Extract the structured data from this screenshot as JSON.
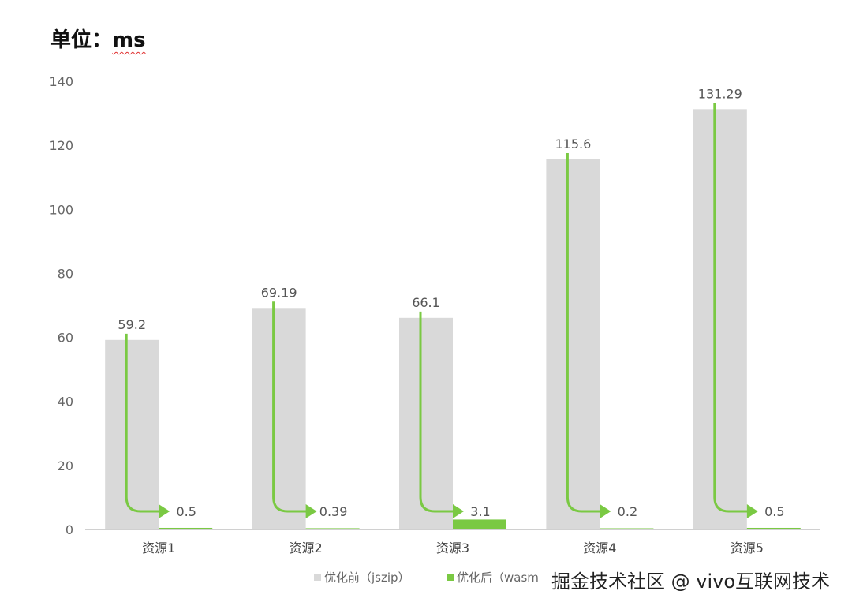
{
  "title": {
    "prefix": "单位：",
    "unit": "ms"
  },
  "chart_data": {
    "type": "bar",
    "categories": [
      "资源1",
      "资源2",
      "资源3",
      "资源4",
      "资源5"
    ],
    "series": [
      {
        "name": "优化前（jszip）",
        "values": [
          59.2,
          69.19,
          66.1,
          115.6,
          131.29
        ],
        "color": "#d9d9d9"
      },
      {
        "name": "优化后（wasm",
        "values": [
          0.5,
          0.39,
          3.1,
          0.2,
          0.5
        ],
        "color": "#7ac943"
      }
    ],
    "data_labels": [
      [
        "59.2",
        "69.19",
        "66.1",
        "115.6",
        "131.29"
      ],
      [
        "0.5",
        "0.39",
        "3.1",
        "0.2",
        "0.5"
      ]
    ],
    "annotations": "green arrows from each before-bar label down and right to the after value",
    "ylim": [
      0,
      140
    ],
    "yticks": [
      "0",
      "20",
      "40",
      "60",
      "80",
      "100",
      "120",
      "140"
    ],
    "grid": false,
    "legend": "bottom"
  },
  "watermark": "掘金技术社区 @ vivo互联网技术"
}
